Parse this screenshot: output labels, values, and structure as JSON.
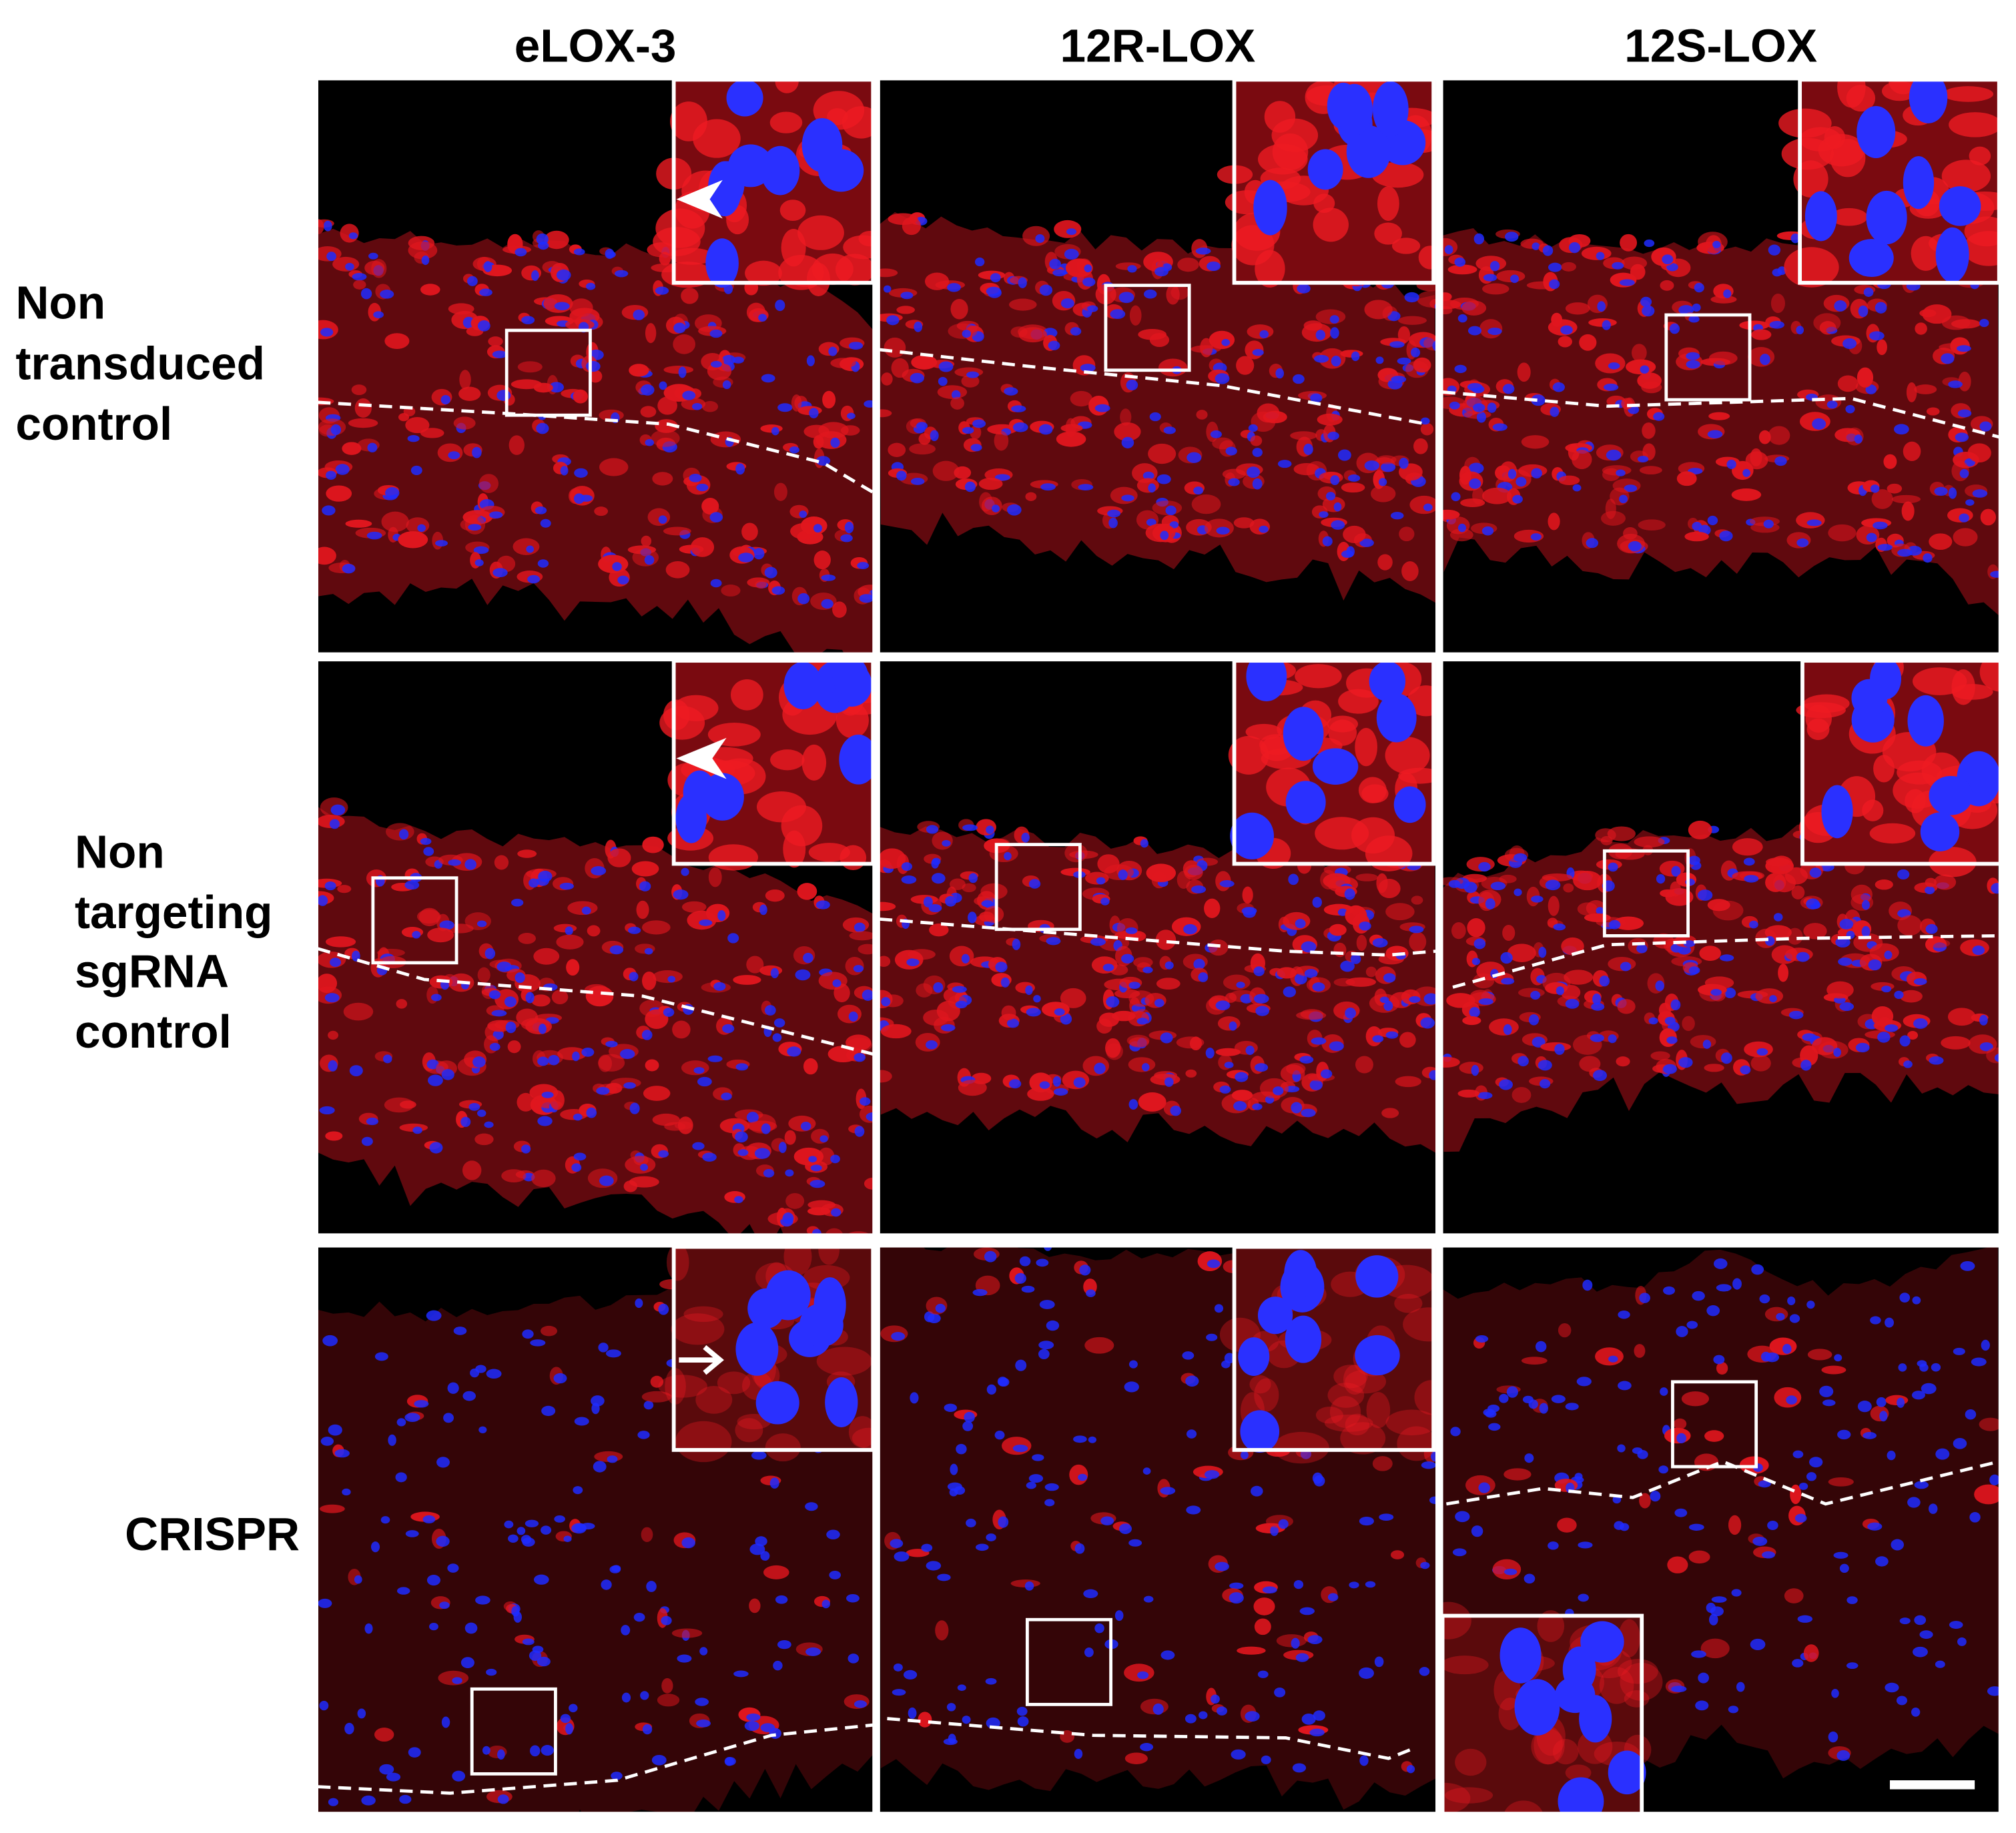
{
  "columns": [
    "eLOX-3",
    "12R-LOX",
    "12S-LOX"
  ],
  "rows": [
    {
      "label": [
        "Non",
        "transduced",
        "control"
      ]
    },
    {
      "label": [
        "Non",
        "targeting",
        "sgRNA",
        "control"
      ]
    },
    {
      "label": [
        "CRISPR"
      ]
    }
  ]
}
